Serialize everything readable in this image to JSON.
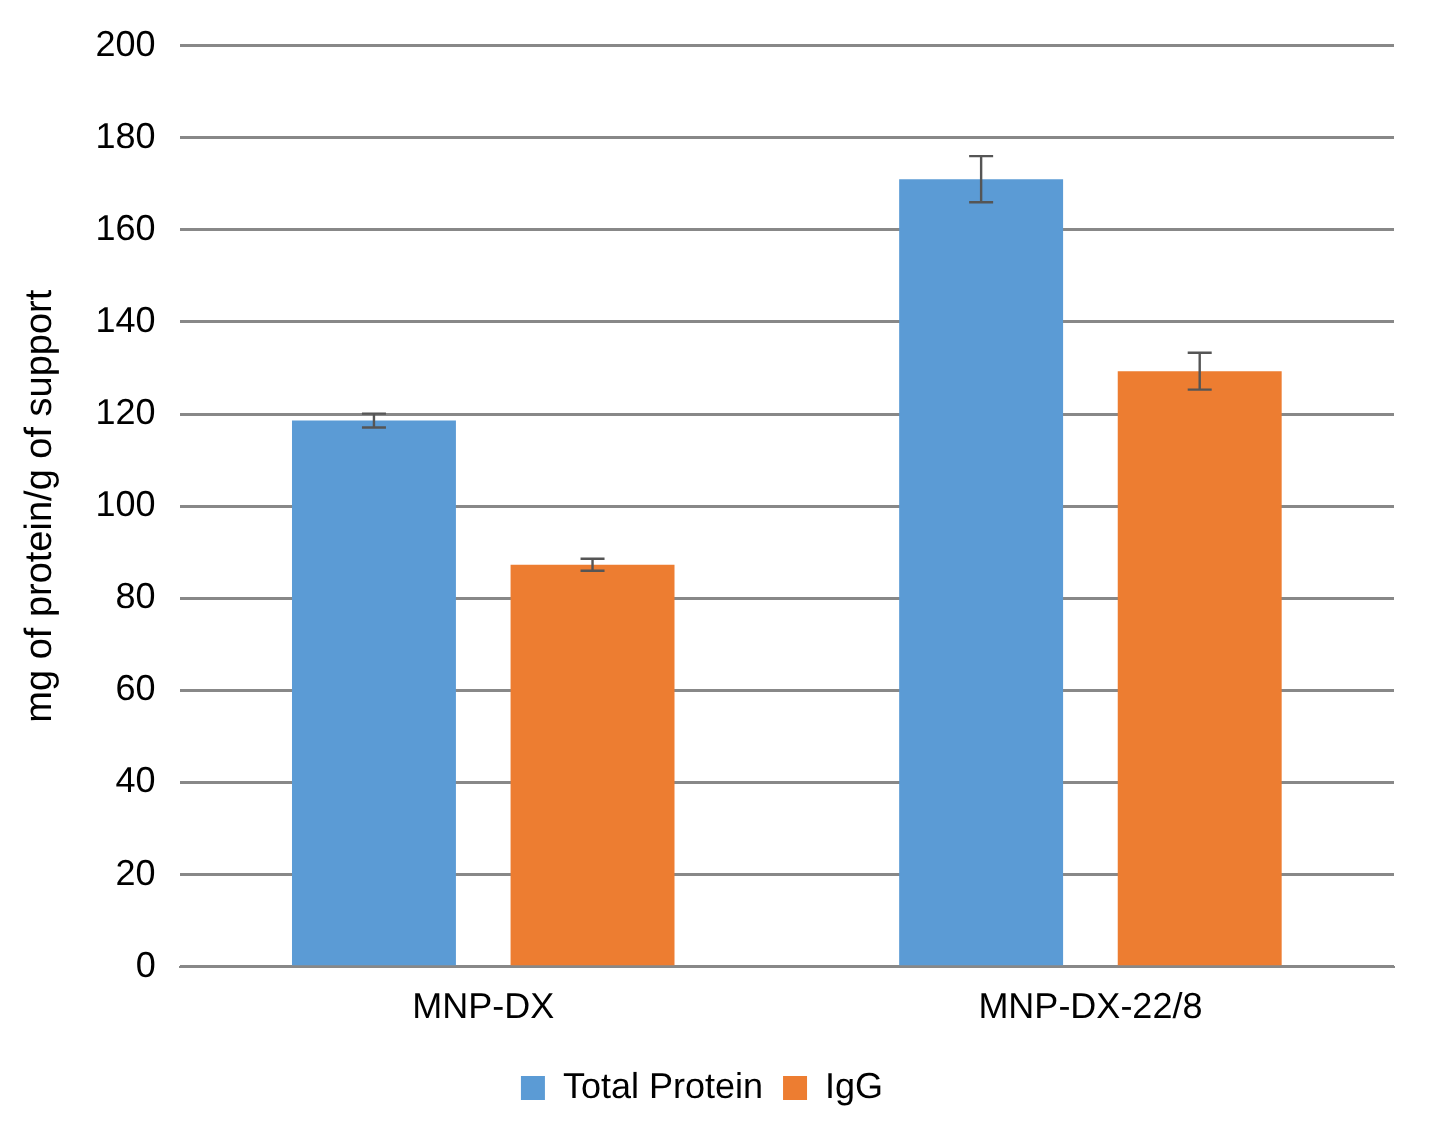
{
  "chart_data": {
    "type": "bar",
    "ylabel": "mg of protein/g of support",
    "categories": [
      "MNP-DX",
      "MNP-DX-22/8"
    ],
    "series": [
      {
        "name": "Total Protein",
        "color": "#5b9bd5",
        "values": [
          118.6,
          171
        ],
        "errors": [
          1.5,
          5
        ]
      },
      {
        "name": "IgG",
        "color": "#ed7d31",
        "values": [
          87.3,
          129.3
        ],
        "errors": [
          1.3,
          4
        ]
      }
    ],
    "ylim": [
      0,
      200
    ],
    "yticks": [
      0,
      20,
      40,
      60,
      80,
      100,
      120,
      140,
      160,
      180,
      200
    ],
    "grid": "y",
    "legend": "bottom"
  }
}
